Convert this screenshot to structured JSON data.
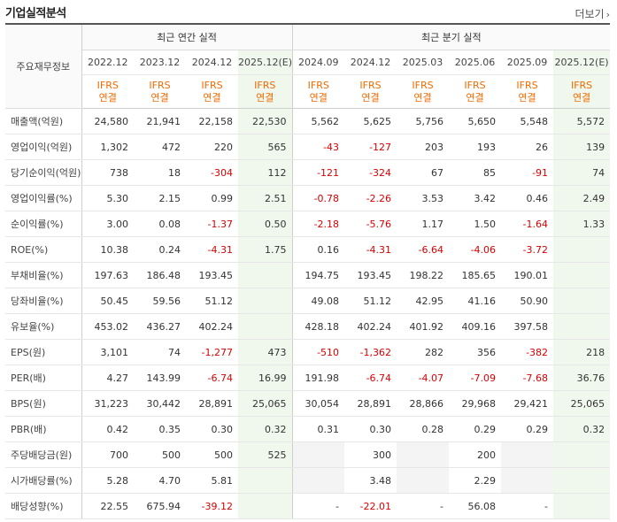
{
  "title": "기업실적분석",
  "more_label": "더보기",
  "more_arrow": "›",
  "row_header_label": "주요재무정보",
  "groups": {
    "annual": "최근 연간 실적",
    "quarterly": "최근 분기 실적"
  },
  "periods": [
    "2022.12",
    "2023.12",
    "2024.12",
    "2025.12(E)",
    "2024.09",
    "2024.12",
    "2025.03",
    "2025.06",
    "2025.09",
    "2025.12(E)"
  ],
  "ifrs": {
    "line1": "IFRS",
    "line2": "연결"
  },
  "rows": [
    {
      "label": "매출액(억원)",
      "values": [
        "24,580",
        "21,941",
        "22,158",
        "22,530",
        "5,562",
        "5,625",
        "5,756",
        "5,650",
        "5,548",
        "5,572"
      ]
    },
    {
      "label": "영업이익(억원)",
      "values": [
        "1,302",
        "472",
        "220",
        "565",
        "-43",
        "-127",
        "203",
        "193",
        "26",
        "139"
      ]
    },
    {
      "label": "당기순이익(억원)",
      "values": [
        "738",
        "18",
        "-304",
        "112",
        "-121",
        "-324",
        "67",
        "85",
        "-91",
        "74"
      ]
    },
    {
      "label": "영업이익률(%)",
      "values": [
        "5.30",
        "2.15",
        "0.99",
        "2.51",
        "-0.78",
        "-2.26",
        "3.53",
        "3.42",
        "0.46",
        "2.49"
      ]
    },
    {
      "label": "순이익률(%)",
      "values": [
        "3.00",
        "0.08",
        "-1.37",
        "0.50",
        "-2.18",
        "-5.76",
        "1.17",
        "1.50",
        "-1.64",
        "1.33"
      ]
    },
    {
      "label": "ROE(%)",
      "values": [
        "10.38",
        "0.24",
        "-4.31",
        "1.75",
        "0.16",
        "-4.31",
        "-6.64",
        "-4.06",
        "-3.72",
        ""
      ]
    },
    {
      "label": "부채비율(%)",
      "values": [
        "197.63",
        "186.48",
        "193.45",
        "",
        "194.75",
        "193.45",
        "198.22",
        "185.65",
        "190.01",
        ""
      ]
    },
    {
      "label": "당좌비율(%)",
      "values": [
        "50.45",
        "59.56",
        "51.12",
        "",
        "49.08",
        "51.12",
        "42.95",
        "41.16",
        "50.90",
        ""
      ]
    },
    {
      "label": "유보율(%)",
      "values": [
        "453.02",
        "436.27",
        "402.24",
        "",
        "428.18",
        "402.24",
        "401.92",
        "409.16",
        "397.58",
        ""
      ]
    },
    {
      "label": "EPS(원)",
      "values": [
        "3,101",
        "74",
        "-1,277",
        "473",
        "-510",
        "-1,362",
        "282",
        "356",
        "-382",
        "218"
      ]
    },
    {
      "label": "PER(배)",
      "values": [
        "4.27",
        "143.99",
        "-6.74",
        "16.99",
        "191.98",
        "-6.74",
        "-4.07",
        "-7.09",
        "-7.68",
        "36.76"
      ]
    },
    {
      "label": "BPS(원)",
      "values": [
        "31,223",
        "30,442",
        "28,891",
        "25,065",
        "30,054",
        "28,891",
        "28,866",
        "29,968",
        "29,421",
        "25,065"
      ]
    },
    {
      "label": "PBR(배)",
      "values": [
        "0.42",
        "0.35",
        "0.30",
        "0.32",
        "0.31",
        "0.30",
        "0.28",
        "0.29",
        "0.29",
        "0.32"
      ]
    },
    {
      "label": "주당배당금(원)",
      "values": [
        "700",
        "500",
        "500",
        "525",
        "",
        "300",
        "",
        "200",
        "",
        ""
      ]
    },
    {
      "label": "시가배당률(%)",
      "values": [
        "5.28",
        "4.70",
        "5.81",
        "",
        "",
        "3.48",
        "",
        "2.29",
        "",
        ""
      ]
    },
    {
      "label": "배당성향(%)",
      "values": [
        "22.55",
        "675.94",
        "-39.12",
        "",
        "-",
        "-22.01",
        "-",
        "56.08",
        "-",
        ""
      ]
    }
  ],
  "colors": {
    "negative": "#d90000",
    "ifrs": "#f06a00",
    "estimate_bg": "#f0f7ec",
    "blank_bg": "#f4f4f4"
  }
}
